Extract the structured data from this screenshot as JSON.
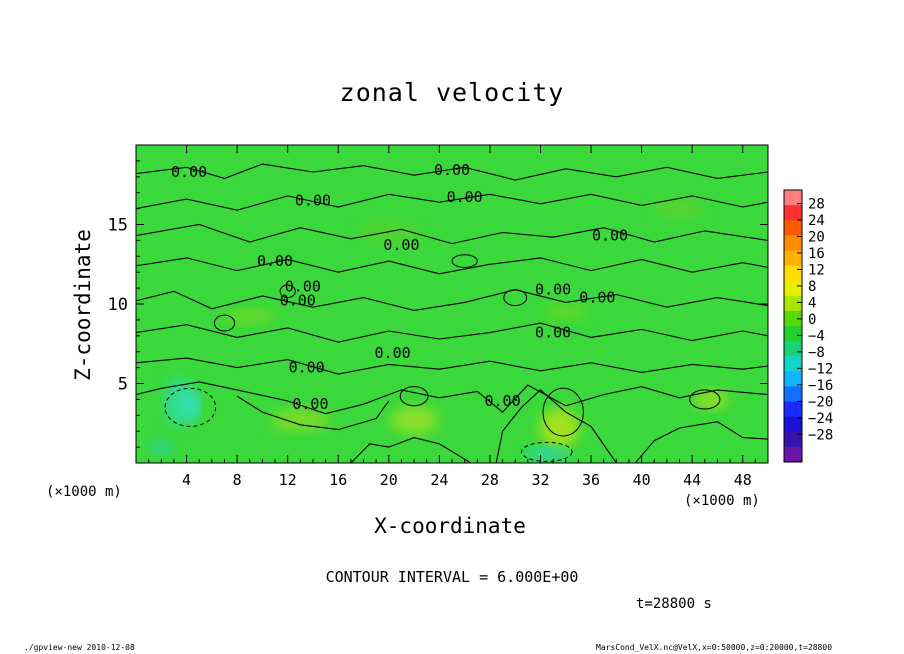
{
  "chart_data": {
    "type": "heatmap",
    "title": "zonal velocity",
    "xlabel": "X-coordinate",
    "ylabel": "Z-coordinate",
    "x_unit": "(×1000 m)",
    "y_unit": "(×1000 m)",
    "xlim": [
      0,
      50
    ],
    "ylim": [
      0,
      20
    ],
    "x_ticks": [
      4,
      8,
      12,
      16,
      20,
      24,
      28,
      32,
      36,
      40,
      44,
      48
    ],
    "y_ticks": [
      5,
      10,
      15
    ],
    "colorbar": {
      "ticks": [
        28,
        24,
        20,
        16,
        12,
        8,
        4,
        0,
        -4,
        -8,
        -12,
        -16,
        -20,
        -24,
        -28
      ],
      "colors": [
        "#ff7f7f",
        "#ff3030",
        "#ff5a00",
        "#ff8c00",
        "#ffb000",
        "#ffdd00",
        "#e8f000",
        "#a8e600",
        "#58d800",
        "#24d030",
        "#18d27a",
        "#14d6c8",
        "#10b4ff",
        "#1070ff",
        "#1a2cff",
        "#1a10d8",
        "#3a12b0",
        "#6a14a8"
      ]
    },
    "field_background": "#3ad83a",
    "contour_interval": "CONTOUR INTERVAL = 6.000E+00",
    "contour_labels": [
      "0.00",
      "0.00",
      "0.00",
      "0.00",
      "0.00",
      "0.00",
      "0.00",
      "0.00",
      "0.00",
      "0.00",
      "0.00",
      "0.00",
      "0.00",
      "0.00",
      "0.00",
      "0.00"
    ],
    "time": "t=28800 s"
  },
  "footer": {
    "left": "./gpview-new   2010-12-08",
    "right": "MarsCond_VelX.nc@VelX,x=0:50000,z=0:20000,t=28800"
  }
}
